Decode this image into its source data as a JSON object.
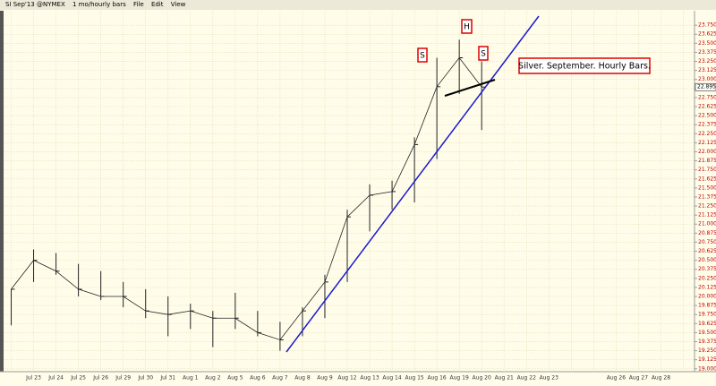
{
  "toolbar": {
    "symbol": "SI Sep'13 @NYMEX",
    "period": "1 mo/hourly bars",
    "menu": [
      "File",
      "Edit",
      "View"
    ]
  },
  "chart_data": {
    "type": "hlc",
    "color": "#222222",
    "grid": true,
    "categories": [
      null,
      "Jul 23",
      "Jul 24",
      "Jul 25",
      "Jul 26",
      "Jul 29",
      "Jul 30",
      "Jul 31",
      "Aug 1",
      "Aug 2",
      "Aug 5",
      "Aug 6",
      "Aug 7",
      "Aug 8",
      "Aug 9",
      "Aug 12",
      "Aug 13",
      "Aug 14",
      "Aug 15",
      "Aug 16",
      "Aug 19",
      "Aug 20",
      "Aug 21",
      "Aug 22",
      "Aug 23",
      null,
      null,
      "Aug 26",
      "Aug 27",
      "Aug 28",
      null
    ],
    "high": [
      20.1,
      20.65,
      20.6,
      20.45,
      20.35,
      20.2,
      20.1,
      20.0,
      19.9,
      19.8,
      20.05,
      19.8,
      19.65,
      19.85,
      20.3,
      21.2,
      21.55,
      21.6,
      22.2,
      23.3,
      23.55,
      23.25,
      null,
      null,
      null,
      null,
      null,
      null,
      null,
      null,
      null
    ],
    "low": [
      19.6,
      20.2,
      20.3,
      20.0,
      19.95,
      19.85,
      19.7,
      19.45,
      19.55,
      19.3,
      19.55,
      19.45,
      19.25,
      19.45,
      19.7,
      20.2,
      20.9,
      21.2,
      21.3,
      21.9,
      22.8,
      22.3,
      null,
      null,
      null,
      null,
      null,
      null,
      null,
      null,
      null
    ],
    "close": [
      20.1,
      20.5,
      20.35,
      20.1,
      20.0,
      20.0,
      19.8,
      19.75,
      19.8,
      19.7,
      19.7,
      19.5,
      19.4,
      19.8,
      20.2,
      21.1,
      21.4,
      21.45,
      22.1,
      22.9,
      23.3,
      22.895,
      null,
      null,
      null,
      null,
      null,
      null,
      null,
      null,
      null
    ],
    "last_price": 22.895,
    "ylim": [
      18.96,
      23.95
    ],
    "yticks": [
      {
        "value": 23.75,
        "label": "23.750"
      },
      {
        "value": 23.625,
        "label": "23.625"
      },
      {
        "value": 23.5,
        "label": "23.500"
      },
      {
        "value": 23.375,
        "label": "23.375"
      },
      {
        "value": 23.25,
        "label": "23.250"
      },
      {
        "value": 23.125,
        "label": "23.125"
      },
      {
        "value": 23.0,
        "label": "23.000"
      },
      {
        "value": 22.875,
        "label": "22.875"
      },
      {
        "value": 22.75,
        "label": "22.750"
      },
      {
        "value": 22.625,
        "label": "22.625"
      },
      {
        "value": 22.5,
        "label": "22.500"
      },
      {
        "value": 22.375,
        "label": "22.375"
      },
      {
        "value": 22.25,
        "label": "22.250"
      },
      {
        "value": 22.125,
        "label": "22.125"
      },
      {
        "value": 22.0,
        "label": "22.000"
      },
      {
        "value": 21.875,
        "label": "21.875"
      },
      {
        "value": 21.75,
        "label": "21.750"
      },
      {
        "value": 21.625,
        "label": "21.625"
      },
      {
        "value": 21.5,
        "label": "21.500"
      },
      {
        "value": 21.375,
        "label": "21.375"
      },
      {
        "value": 21.25,
        "label": "21.250"
      },
      {
        "value": 21.125,
        "label": "21.125"
      },
      {
        "value": 21.0,
        "label": "21.000"
      },
      {
        "value": 20.875,
        "label": "20.875"
      },
      {
        "value": 20.75,
        "label": "20.750"
      },
      {
        "value": 20.625,
        "label": "20.625"
      },
      {
        "value": 20.5,
        "label": "20.500"
      },
      {
        "value": 20.375,
        "label": "20.375"
      },
      {
        "value": 20.25,
        "label": "20.250"
      },
      {
        "value": 20.125,
        "label": "20.125"
      },
      {
        "value": 20.0,
        "label": "20.000"
      },
      {
        "value": 19.875,
        "label": "19.875"
      },
      {
        "value": 19.75,
        "label": "19.750"
      },
      {
        "value": 19.625,
        "label": "19.625"
      },
      {
        "value": 19.5,
        "label": "19.500"
      },
      {
        "value": 19.375,
        "label": "19.375"
      },
      {
        "value": 19.25,
        "label": "19.250"
      },
      {
        "value": 19.125,
        "label": "19.125"
      },
      {
        "value": 19.0,
        "label": "19.000"
      }
    ],
    "annotations": [
      "S",
      "H",
      "S",
      "Silver. September. Hourly Bars."
    ]
  }
}
